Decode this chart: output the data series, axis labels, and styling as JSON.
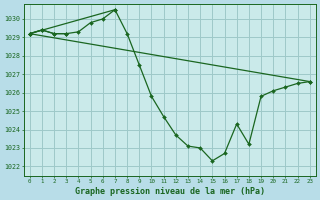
{
  "bg_color": "#b8dde8",
  "plot_bg_color": "#caeaea",
  "grid_color": "#9ec8c8",
  "line_color": "#1a6620",
  "title": "Graphe pression niveau de la mer (hPa)",
  "xlim": [
    -0.5,
    23.5
  ],
  "ylim": [
    1021.5,
    1030.8
  ],
  "yticks": [
    1022,
    1023,
    1024,
    1025,
    1026,
    1027,
    1028,
    1029,
    1030
  ],
  "xticks": [
    0,
    1,
    2,
    3,
    4,
    5,
    6,
    7,
    8,
    9,
    10,
    11,
    12,
    13,
    14,
    15,
    16,
    17,
    18,
    19,
    20,
    21,
    22,
    23
  ],
  "series": [
    {
      "x": [
        0,
        1,
        2,
        3,
        4,
        5,
        6,
        7,
        8,
        9,
        10,
        11,
        12,
        13,
        14,
        15,
        16,
        17,
        18,
        19,
        20,
        21,
        22,
        23
      ],
      "y": [
        1029.2,
        1029.4,
        1029.2,
        1029.2,
        1029.3,
        1029.8,
        1030.0,
        1030.5,
        1029.2,
        1027.5,
        1025.8,
        1024.7,
        1023.7,
        1023.1,
        1023.0,
        1022.3,
        1022.7,
        1024.3,
        1023.2,
        1025.8,
        1026.1,
        1026.3,
        1026.5,
        1026.6
      ]
    },
    {
      "x": [
        0,
        1,
        2,
        3
      ],
      "y": [
        1029.2,
        1029.4,
        1029.2,
        1029.2
      ]
    },
    {
      "x": [
        0,
        7
      ],
      "y": [
        1029.2,
        1030.5
      ]
    },
    {
      "x": [
        0,
        23
      ],
      "y": [
        1029.2,
        1026.6
      ]
    }
  ]
}
